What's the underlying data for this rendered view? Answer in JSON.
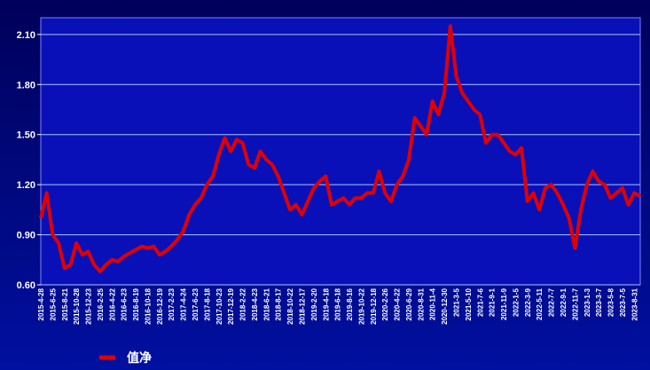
{
  "chart_data": {
    "type": "line",
    "categories": [
      "2015-4-28",
      null,
      "2015-6-25",
      null,
      "2015-8-21",
      null,
      "2015-10-28",
      null,
      "2015-12-23",
      null,
      "2016-2-25",
      null,
      "2016-4-22",
      null,
      "2016-6-23",
      null,
      "2016-8-19",
      null,
      "2016-10-18",
      null,
      "2016-12-19",
      null,
      "2017-2-23",
      null,
      "2017-4-24",
      null,
      "2017-6-23",
      null,
      "2017-8-18",
      null,
      "2017-10-23",
      null,
      "2017-12-19",
      null,
      "2018-2-22",
      null,
      "2018-4-23",
      null,
      "2018-6-21",
      null,
      "2018-8-17",
      null,
      "2018-10-22",
      null,
      "2018-12-17",
      null,
      "2019-2-20",
      null,
      "2019-4-18",
      null,
      "2019-6-18",
      null,
      "2019-8-16",
      null,
      "2019-10-22",
      null,
      "2019-12-18",
      null,
      "2020-2-26",
      null,
      "2020-4-22",
      null,
      "2020-6-29",
      null,
      "2020-8-31",
      null,
      "2020-11-4",
      null,
      "2020-12-30",
      null,
      "2021-3-5",
      null,
      "2021-5-10",
      null,
      "2021-7-6",
      null,
      "2021-9-1",
      null,
      "2021-11-9",
      null,
      "2022-1-5",
      null,
      "2022-3-9",
      null,
      "2022-5-11",
      null,
      "2022-7-7",
      null,
      "2022-9-1",
      null,
      "2022-11-7",
      null,
      "2023-1-3",
      null,
      "2023-3-7",
      null,
      "2023-5-8",
      null,
      "2023-7-5",
      null,
      "2023-8-31",
      null
    ],
    "series": [
      {
        "name": "值净",
        "color": "#e00000",
        "values": [
          1.0,
          1.15,
          0.9,
          0.85,
          0.7,
          0.72,
          0.85,
          0.78,
          0.8,
          0.72,
          0.68,
          0.72,
          0.75,
          0.74,
          0.77,
          0.79,
          0.81,
          0.83,
          0.82,
          0.83,
          0.78,
          0.8,
          0.83,
          0.87,
          0.92,
          1.02,
          1.08,
          1.12,
          1.2,
          1.25,
          1.38,
          1.48,
          1.4,
          1.47,
          1.45,
          1.32,
          1.3,
          1.4,
          1.35,
          1.32,
          1.25,
          1.15,
          1.05,
          1.08,
          1.02,
          1.1,
          1.18,
          1.22,
          1.25,
          1.08,
          1.1,
          1.12,
          1.08,
          1.12,
          1.12,
          1.15,
          1.15,
          1.28,
          1.15,
          1.1,
          1.2,
          1.25,
          1.35,
          1.6,
          1.55,
          1.5,
          1.7,
          1.62,
          1.75,
          2.15,
          1.85,
          1.75,
          1.7,
          1.65,
          1.62,
          1.45,
          1.5,
          1.5,
          1.45,
          1.4,
          1.38,
          1.42,
          1.1,
          1.15,
          1.05,
          1.18,
          1.2,
          1.15,
          1.08,
          1.0,
          0.82,
          1.05,
          1.2,
          1.28,
          1.22,
          1.2,
          1.12,
          1.15,
          1.18,
          1.08,
          1.15,
          1.13
        ]
      }
    ],
    "ylim": [
      0.6,
      2.2
    ],
    "yticks": [
      {
        "value": 0.6,
        "label": "0.60"
      },
      {
        "value": 0.9,
        "label": "0.90"
      },
      {
        "value": 1.2,
        "label": "1.20"
      },
      {
        "value": 1.5,
        "label": "1.50"
      },
      {
        "value": 1.8,
        "label": "1.80"
      },
      {
        "value": 2.1,
        "label": "2.10"
      }
    ],
    "grid": true
  }
}
